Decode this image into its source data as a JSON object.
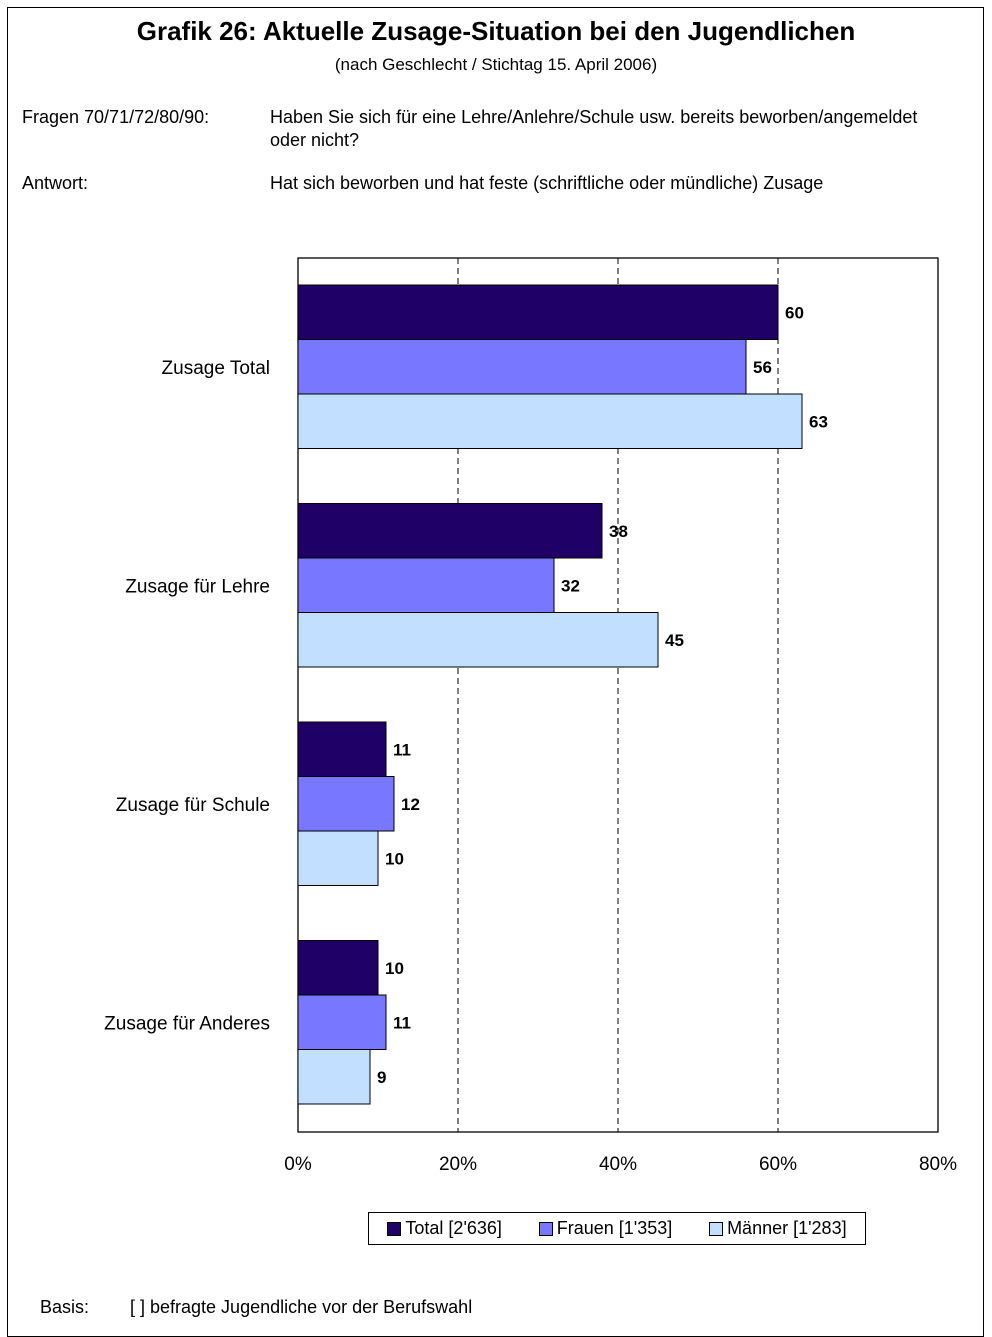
{
  "header": {
    "title": "Grafik 26: Aktuelle Zusage-Situation bei den Jugendlichen",
    "subtitle": "(nach Geschlecht / Stichtag 15. April 2006)"
  },
  "question": {
    "label": "Fragen 70/71/72/80/90:",
    "text": "Haben Sie sich für eine Lehre/Anlehre/Schule usw. bereits beworben/angemeldet oder nicht?"
  },
  "answer": {
    "label": "Antwort:",
    "text": "Hat sich beworben und hat feste (schriftliche oder mündliche) Zusage"
  },
  "footer": {
    "basis_label": "Basis:",
    "basis_text": "[ ] befragte Jugendliche vor der Berufswahl"
  },
  "colors": {
    "total": "#1F0066",
    "frauen": "#7777FF",
    "maenner": "#C2DFFF"
  },
  "chart_data": {
    "type": "bar",
    "orientation": "horizontal",
    "categories": [
      "Zusage Total",
      "Zusage für Lehre",
      "Zusage für Schule",
      "Zusage für Anderes"
    ],
    "series": [
      {
        "name": "Total [2'636]",
        "values": [
          60,
          38,
          11,
          10
        ],
        "color": "#1F0066"
      },
      {
        "name": "Frauen [1'353]",
        "values": [
          56,
          32,
          12,
          11
        ],
        "color": "#7777FF"
      },
      {
        "name": "Männer [1'283]",
        "values": [
          63,
          45,
          10,
          9
        ],
        "color": "#C2DFFF"
      }
    ],
    "xlim": [
      0,
      80
    ],
    "xticks": [
      0,
      20,
      40,
      60,
      80
    ],
    "xtick_labels": [
      "0%",
      "20%",
      "40%",
      "60%",
      "80%"
    ],
    "grid": "vertical dashed",
    "legend": "bottom"
  }
}
